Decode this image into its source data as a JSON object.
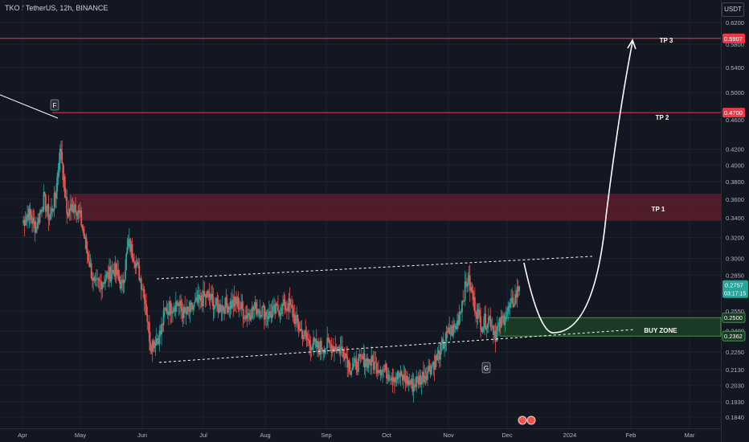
{
  "header": {
    "symbol_line": "TKO / TetherUS, 12h, BINANCE",
    "currency": "USDT"
  },
  "colors": {
    "background": "#131722",
    "up": "#26a69a",
    "down": "#ef5350",
    "target_line": "#f23645",
    "resistance_zone": "#5d1d2b",
    "buy_zone": "#1b3a26",
    "buy_zone_border": "#4caf50",
    "annotation": "#ffffff"
  },
  "chart_data": {
    "type": "candlestick",
    "y_scale": "log",
    "ylim": [
      0.18,
      0.655
    ],
    "y_ticks": [
      "0.6200",
      "0.5800",
      "0.5400",
      "0.5000",
      "0.4600",
      "0.4200",
      "0.4000",
      "0.3800",
      "0.3600",
      "0.3400",
      "0.3200",
      "0.3000",
      "0.2850",
      "0.2550",
      "0.2400",
      "0.2250",
      "0.2130",
      "0.2030",
      "0.1930",
      "0.1840"
    ],
    "x_ticks": [
      "Apr",
      "May",
      "Jun",
      "Jul",
      "Aug",
      "Sep",
      "Oct",
      "Nov",
      "Dec",
      "2024",
      "Feb",
      "Mar"
    ],
    "price_anchors": [
      [
        "Apr 1",
        0.335
      ],
      [
        "Apr 4",
        0.345
      ],
      [
        "Apr 8",
        0.33
      ],
      [
        "Apr 12",
        0.36
      ],
      [
        "Apr 15",
        0.34
      ],
      [
        "Apr 18",
        0.362
      ],
      [
        "Apr 20",
        0.41
      ],
      [
        "Apr 21",
        0.42
      ],
      [
        "Apr 22",
        0.39
      ],
      [
        "Apr 24",
        0.345
      ],
      [
        "Apr 28",
        0.355
      ],
      [
        "May 1",
        0.34
      ],
      [
        "May 4",
        0.31
      ],
      [
        "May 8",
        0.275
      ],
      [
        "May 12",
        0.28
      ],
      [
        "May 18",
        0.29
      ],
      [
        "May 22",
        0.275
      ],
      [
        "May 25",
        0.315
      ],
      [
        "May 28",
        0.302
      ],
      [
        "Jun 2",
        0.27
      ],
      [
        "Jun 5",
        0.23
      ],
      [
        "Jun 10",
        0.238
      ],
      [
        "Jun 12",
        0.255
      ],
      [
        "Jun 18",
        0.262
      ],
      [
        "Jun 22",
        0.252
      ],
      [
        "Jun 27",
        0.26
      ],
      [
        "Jul 3",
        0.268
      ],
      [
        "Jul 8",
        0.258
      ],
      [
        "Jul 13",
        0.26
      ],
      [
        "Jul 18",
        0.262
      ],
      [
        "Jul 22",
        0.252
      ],
      [
        "Jul 28",
        0.258
      ],
      [
        "Aug 3",
        0.252
      ],
      [
        "Aug 8",
        0.257
      ],
      [
        "Aug 13",
        0.26
      ],
      [
        "Aug 18",
        0.243
      ],
      [
        "Aug 23",
        0.232
      ],
      [
        "Aug 28",
        0.228
      ],
      [
        "Sep 3",
        0.23
      ],
      [
        "Sep 10",
        0.226
      ],
      [
        "Sep 13",
        0.214
      ],
      [
        "Sep 20",
        0.22
      ],
      [
        "Sep 27",
        0.215
      ],
      [
        "Oct 3",
        0.21
      ],
      [
        "Oct 10",
        0.207
      ],
      [
        "Oct 14",
        0.203
      ],
      [
        "Oct 20",
        0.21
      ],
      [
        "Oct 26",
        0.22
      ],
      [
        "Nov 1",
        0.238
      ],
      [
        "Nov 5",
        0.243
      ],
      [
        "Nov 9",
        0.27
      ],
      [
        "Nov 11",
        0.282
      ],
      [
        "Nov 14",
        0.262
      ],
      [
        "Nov 18",
        0.245
      ],
      [
        "Nov 22",
        0.25
      ],
      [
        "Nov 25",
        0.238
      ],
      [
        "Nov 30",
        0.252
      ],
      [
        "Dec 4",
        0.262
      ],
      [
        "Dec 7",
        0.2757
      ]
    ],
    "levels": [
      {
        "label": "TP 3",
        "price": 0.5907,
        "marker": "0.5907"
      },
      {
        "label": "TP 2",
        "price": 0.47,
        "marker": "0.4700"
      }
    ],
    "zones": [
      {
        "label": "TP 1",
        "top": 0.366,
        "bottom": 0.337
      },
      {
        "label": "BUY ZONE",
        "top": 0.25,
        "bottom": 0.2362,
        "markers": [
          "0.2500",
          "0.2362"
        ]
      }
    ],
    "last_price": {
      "value": "0.2757",
      "countdown": "03:17:15"
    },
    "point_labels": [
      "F",
      "G"
    ]
  }
}
